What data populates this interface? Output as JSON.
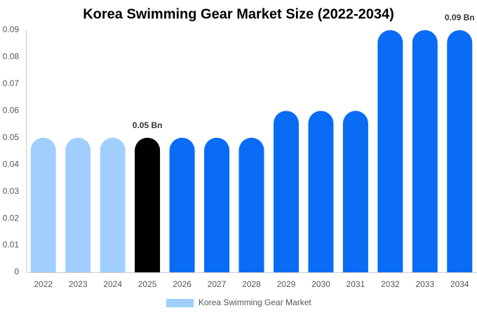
{
  "chart_data": {
    "type": "bar",
    "title": "Korea Swimming Gear Market Size (2022-2034)",
    "categories": [
      "2022",
      "2023",
      "2024",
      "2025",
      "2026",
      "2027",
      "2028",
      "2029",
      "2030",
      "2031",
      "2032",
      "2033",
      "2034"
    ],
    "series": [
      {
        "name": "Korea Swimming Gear Market",
        "color": "#a0cfff",
        "values": [
          0.05,
          0.05,
          0.05,
          0.05,
          0.05,
          0.05,
          0.05,
          0.06,
          0.06,
          0.06,
          0.09,
          0.09,
          0.09
        ],
        "value_labels": [
          null,
          null,
          null,
          "0.05 Bn",
          null,
          null,
          null,
          null,
          null,
          null,
          null,
          null,
          "0.09 Bn"
        ],
        "colors": [
          "#a0cfff",
          "#a0cfff",
          "#a0cfff",
          "#000000",
          "#0a6cf5",
          "#0a6cf5",
          "#0a6cf5",
          "#0a6cf5",
          "#0a6cf5",
          "#0a6cf5",
          "#0a6cf5",
          "#0a6cf5",
          "#0a6cf5"
        ]
      }
    ],
    "ylim": [
      0,
      0.09
    ],
    "yticks": [
      0,
      0.01,
      0.02,
      0.03,
      0.04,
      0.05,
      0.06,
      0.07,
      0.08,
      0.09
    ],
    "grid": false
  }
}
